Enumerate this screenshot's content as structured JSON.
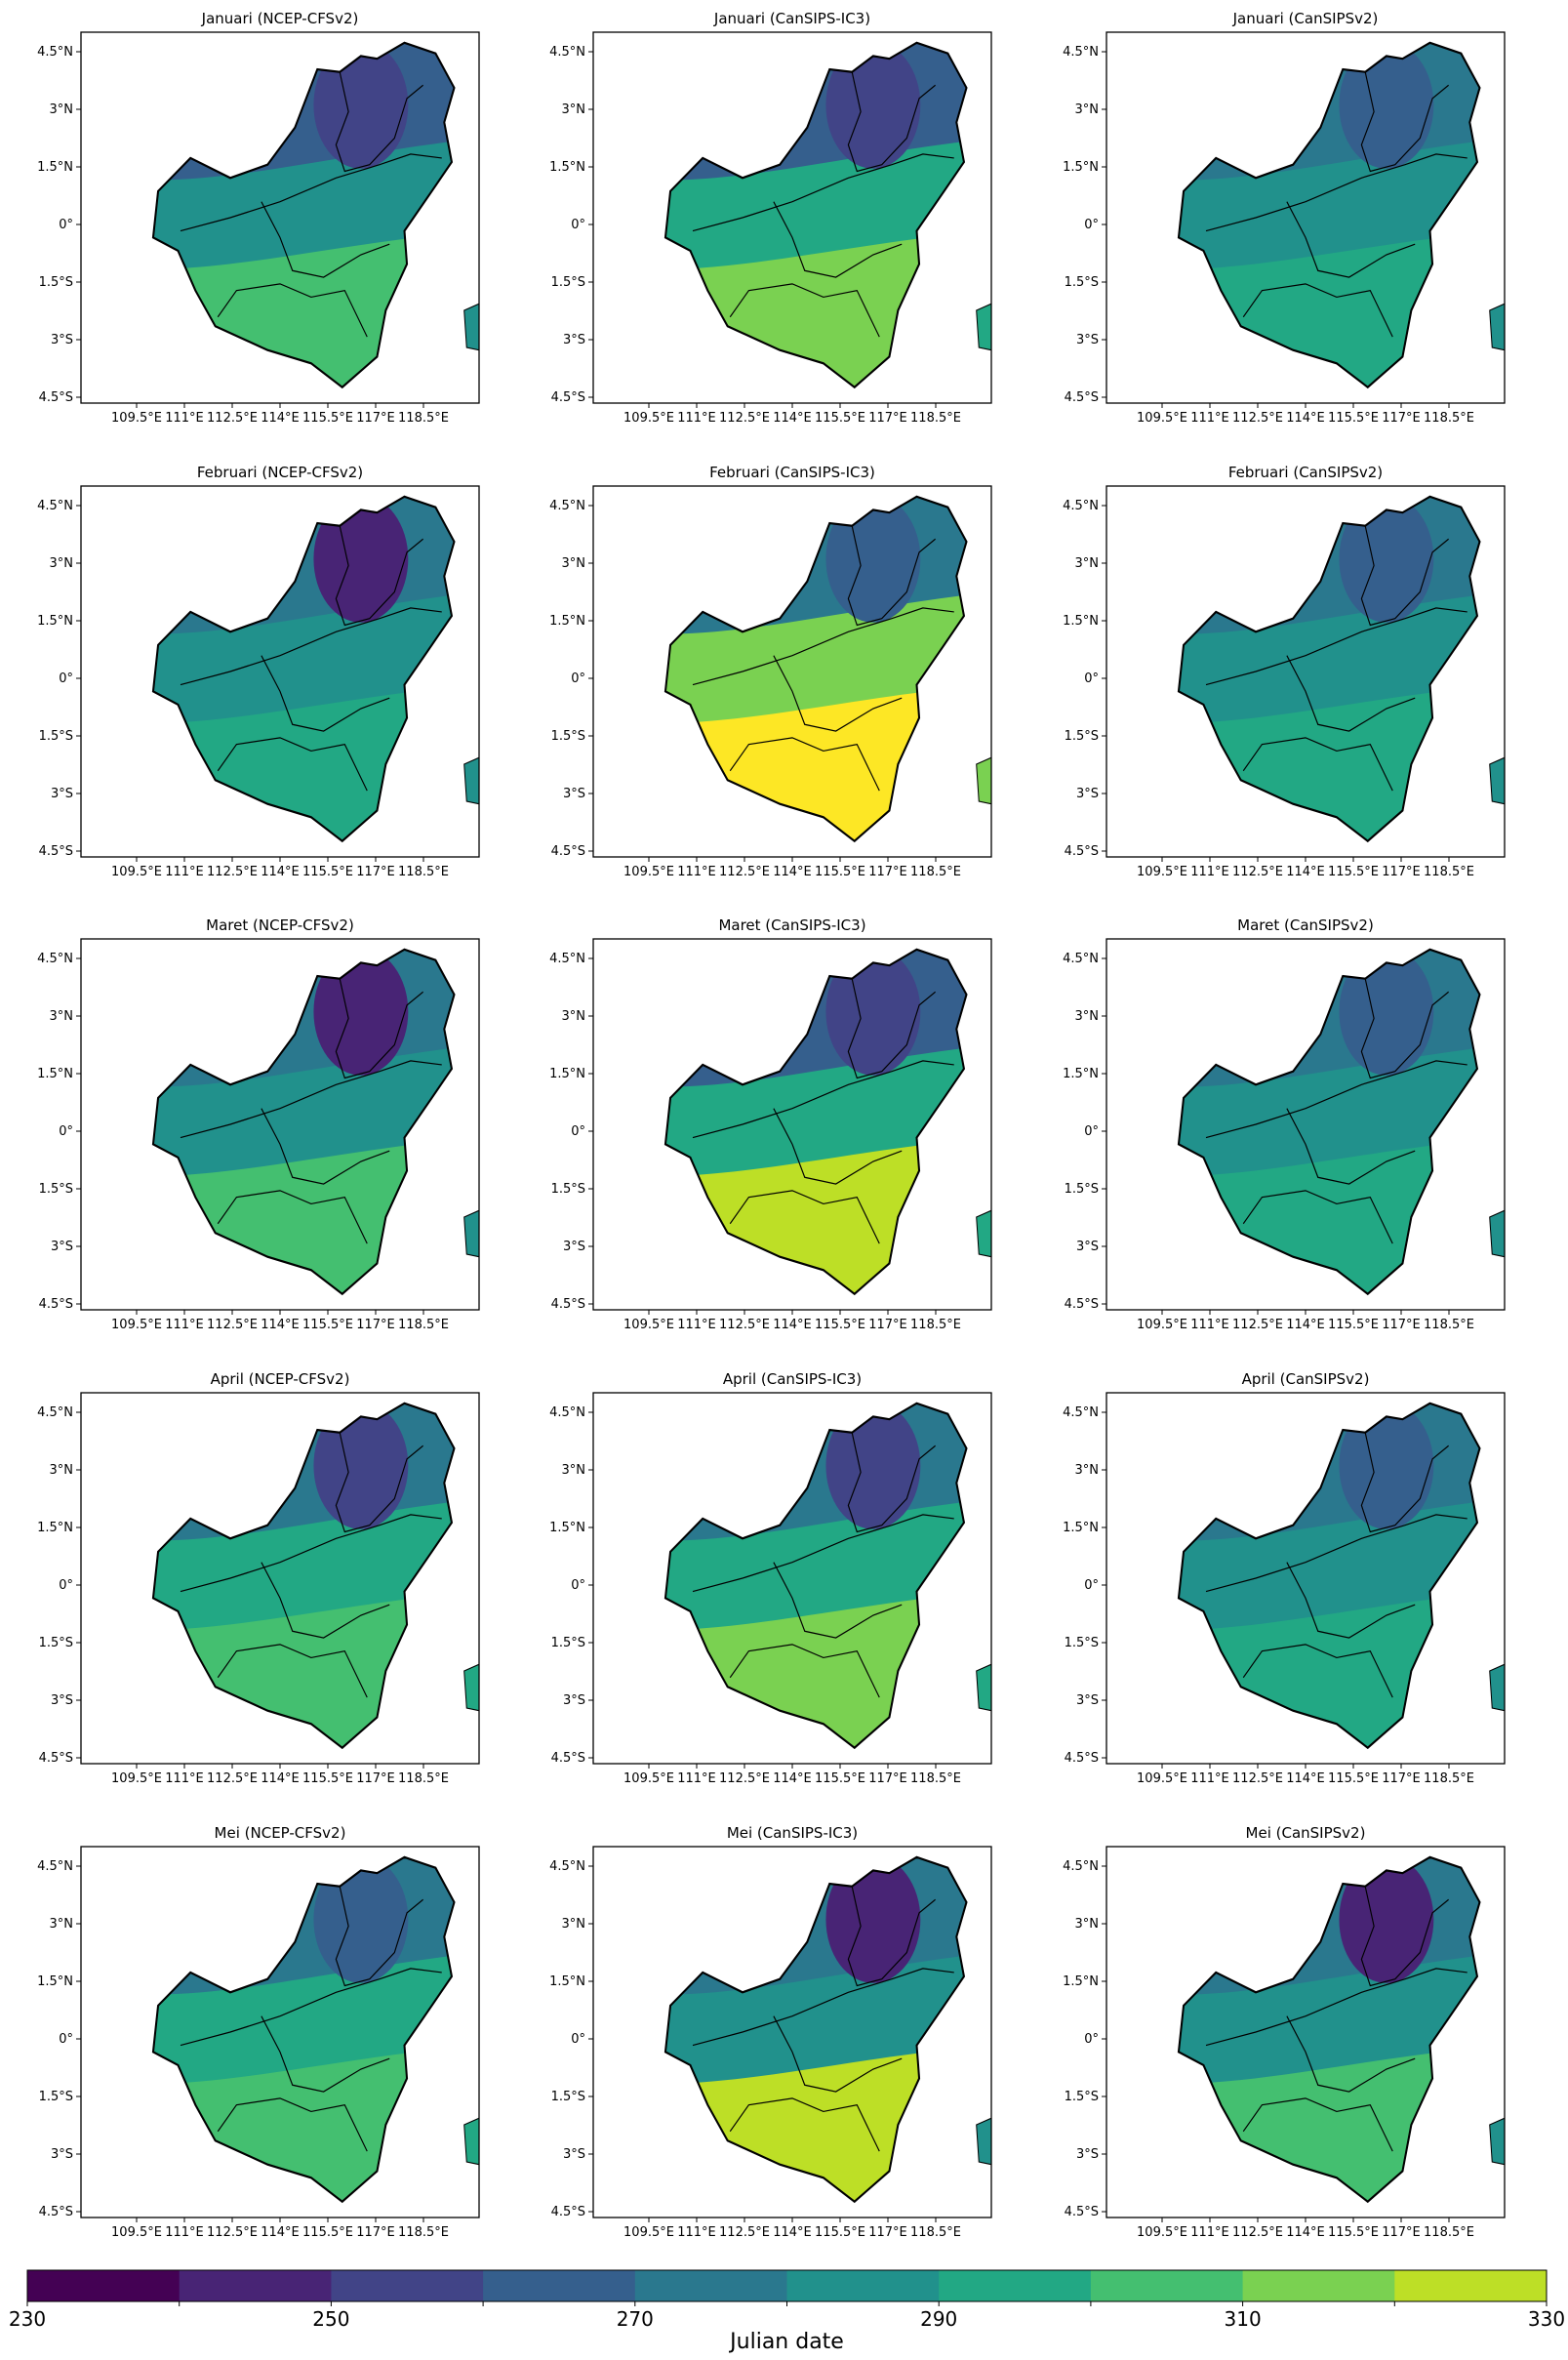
{
  "figure": {
    "lon_ticks": [
      "109.5°E",
      "111°E",
      "112.5°E",
      "114°E",
      "115.5°E",
      "117°E",
      "118.5°E"
    ],
    "lat_ticks": [
      "4.5°N",
      "3°N",
      "1.5°N",
      "0°",
      "1.5°S",
      "3°S",
      "4.5°S"
    ],
    "panels": [
      {
        "title": "Januari (NCEP-CFSv2)"
      },
      {
        "title": "Januari (CanSIPS-IC3)"
      },
      {
        "title": "Januari (CanSIPSv2)"
      },
      {
        "title": "Februari (NCEP-CFSv2)"
      },
      {
        "title": "Februari (CanSIPS-IC3)"
      },
      {
        "title": "Februari (CanSIPSv2)"
      },
      {
        "title": "Maret (NCEP-CFSv2)"
      },
      {
        "title": "Maret (CanSIPS-IC3)"
      },
      {
        "title": "Maret (CanSIPSv2)"
      },
      {
        "title": "April (NCEP-CFSv2)"
      },
      {
        "title": "April (CanSIPS-IC3)"
      },
      {
        "title": "April (CanSIPSv2)"
      },
      {
        "title": "Mei (NCEP-CFSv2)"
      },
      {
        "title": "Mei (CanSIPS-IC3)"
      },
      {
        "title": "Mei (CanSIPSv2)"
      }
    ],
    "colorbar": {
      "label": "Julian date",
      "tick_labels": [
        "230",
        "250",
        "270",
        "290",
        "310",
        "330"
      ],
      "bins": [
        230,
        240,
        250,
        260,
        270,
        280,
        290,
        300,
        310,
        320,
        330
      ],
      "colors": [
        "#440154",
        "#482475",
        "#414487",
        "#355f8d",
        "#2a788e",
        "#21918c",
        "#22a884",
        "#44bf70",
        "#7ad151",
        "#bddf26",
        "#fde725"
      ]
    }
  }
}
